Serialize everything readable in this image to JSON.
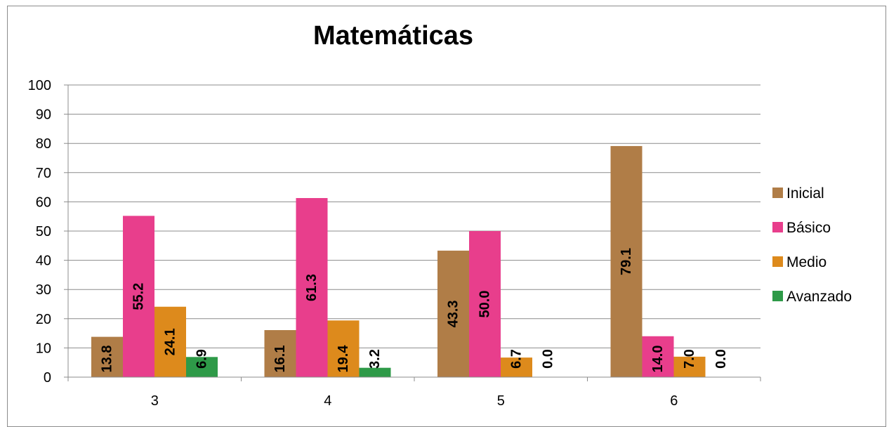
{
  "chart_data": {
    "type": "bar",
    "title": "Matemáticas",
    "xlabel": "",
    "ylabel": "",
    "ylim": [
      0,
      100
    ],
    "yticks": [
      0,
      10,
      20,
      30,
      40,
      50,
      60,
      70,
      80,
      90,
      100
    ],
    "categories": [
      "3",
      "4",
      "5",
      "6"
    ],
    "series": [
      {
        "name": "Inicial",
        "color": "#b07d47",
        "values": [
          13.8,
          16.1,
          43.3,
          79.1
        ],
        "labels": [
          "13.8",
          "16.1",
          "43.3",
          "79.1"
        ]
      },
      {
        "name": "Básico",
        "color": "#e83e8c",
        "values": [
          55.2,
          61.3,
          50.0,
          14.0
        ],
        "labels": [
          "55.2",
          "61.3",
          "50.0",
          "14.0"
        ]
      },
      {
        "name": "Medio",
        "color": "#dd8a1c",
        "values": [
          24.1,
          19.4,
          6.7,
          7.0
        ],
        "labels": [
          "24.1",
          "19.4",
          "6.7",
          "7.0"
        ]
      },
      {
        "name": "Avanzado",
        "color": "#2e9a48",
        "values": [
          6.9,
          3.2,
          0.0,
          0.0
        ],
        "labels": [
          "6.9",
          "3.2",
          "0.0",
          "0.0"
        ]
      }
    ],
    "grid": true,
    "legend": "right"
  }
}
